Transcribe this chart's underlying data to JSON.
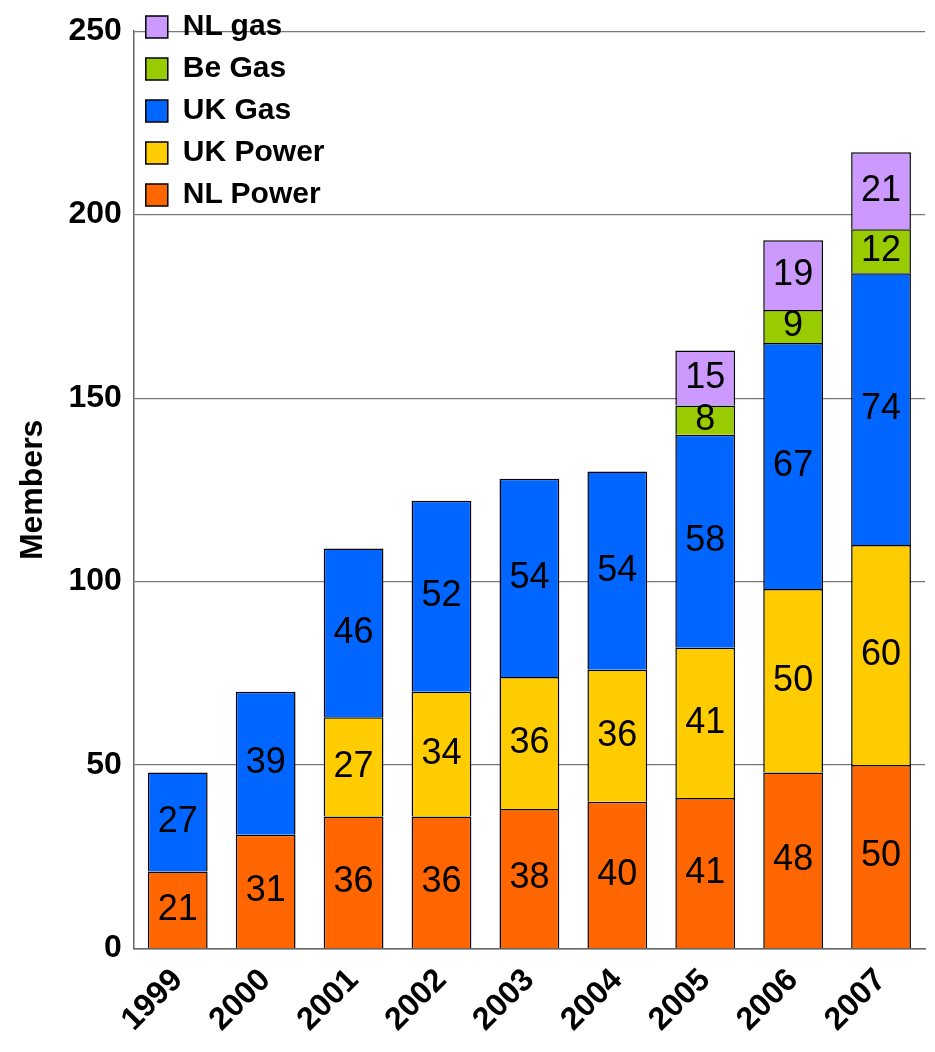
{
  "chart_data": {
    "type": "bar",
    "ylabel": "Members",
    "categories": [
      "1999",
      "2000",
      "2001",
      "2002",
      "2003",
      "2004",
      "2005",
      "2006",
      "2007"
    ],
    "stacked": true,
    "ylim": [
      0,
      250
    ],
    "yticks": [
      0,
      50,
      100,
      150,
      200,
      250
    ],
    "grid": "y",
    "legend": "top left",
    "data_labels": true,
    "series": [
      {
        "name": "NL Power",
        "color": "#ff6600",
        "values": [
          21,
          31,
          36,
          36,
          38,
          40,
          41,
          48,
          50
        ]
      },
      {
        "name": "UK Power",
        "color": "#ffcc00",
        "values": [
          null,
          null,
          27,
          34,
          36,
          36,
          41,
          50,
          60
        ]
      },
      {
        "name": "UK Gas",
        "color": "#0066ff",
        "values": [
          27,
          39,
          46,
          52,
          54,
          54,
          58,
          67,
          74
        ]
      },
      {
        "name": "Be Gas",
        "color": "#99cc00",
        "values": [
          null,
          null,
          null,
          null,
          null,
          null,
          8,
          9,
          12
        ]
      },
      {
        "name": "NL gas",
        "color": "#cc99ff",
        "values": [
          null,
          null,
          null,
          null,
          null,
          null,
          15,
          19,
          21
        ]
      }
    ]
  }
}
